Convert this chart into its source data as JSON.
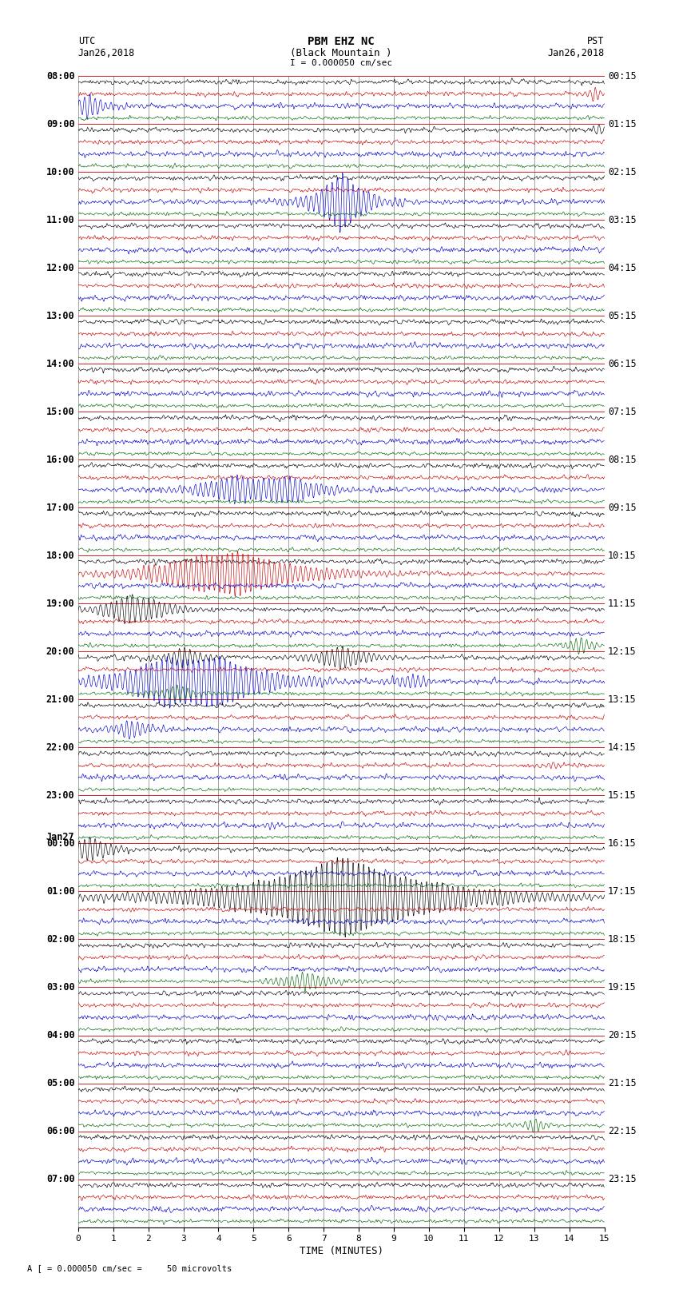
{
  "title_line1": "PBM EHZ NC",
  "title_line2": "(Black Mountain )",
  "scale_label": "I = 0.000050 cm/sec",
  "left_header": "UTC",
  "left_date": "Jan26,2018",
  "right_header": "PST",
  "right_date": "Jan26,2018",
  "xlabel": "TIME (MINUTES)",
  "footer_label": "A [ = 0.000050 cm/sec =     50 microvolts",
  "xmin": 0,
  "xmax": 15,
  "xticks": [
    0,
    1,
    2,
    3,
    4,
    5,
    6,
    7,
    8,
    9,
    10,
    11,
    12,
    13,
    14,
    15
  ],
  "n_hours": 24,
  "trace_colors": [
    "#000000",
    "#cc0000",
    "#0000cc",
    "#006600"
  ],
  "grid_color": "#808080",
  "background_color": "#ffffff",
  "utc_labels": [
    "08:00",
    "09:00",
    "10:00",
    "11:00",
    "12:00",
    "13:00",
    "14:00",
    "15:00",
    "16:00",
    "17:00",
    "18:00",
    "19:00",
    "20:00",
    "21:00",
    "22:00",
    "23:00",
    "00:00",
    "01:00",
    "02:00",
    "03:00",
    "04:00",
    "05:00",
    "06:00",
    "07:00"
  ],
  "jan27_row": 16,
  "pst_labels": [
    "00:15",
    "01:15",
    "02:15",
    "03:15",
    "04:15",
    "05:15",
    "06:15",
    "07:15",
    "08:15",
    "09:15",
    "10:15",
    "11:15",
    "12:15",
    "13:15",
    "14:15",
    "15:15",
    "16:15",
    "17:15",
    "18:15",
    "19:15",
    "20:15",
    "21:15",
    "22:15",
    "23:15"
  ]
}
